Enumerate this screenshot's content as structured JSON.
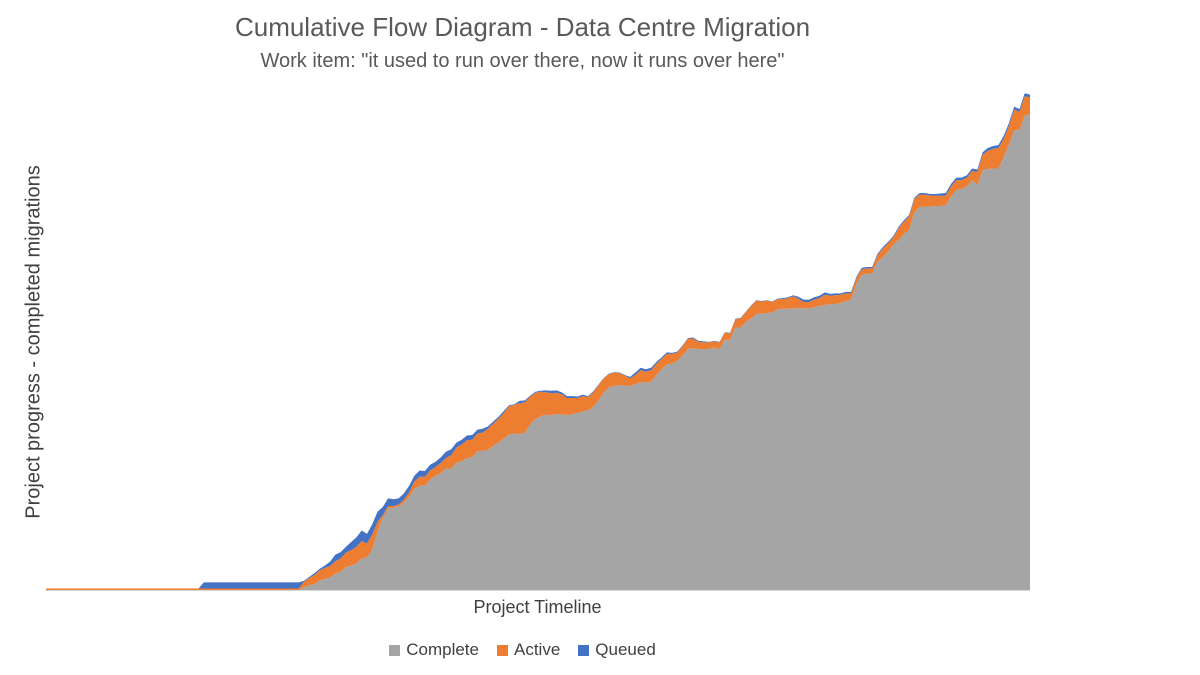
{
  "chart_data": {
    "type": "area",
    "stacked": true,
    "title": "Cumulative Flow Diagram - Data Centre Migration",
    "subtitle": "Work item: \"it used to run over there, now it runs over here\"",
    "xlabel": "Project Timeline",
    "ylabel": "Project progress - completed migrations",
    "x_ticks_shown": false,
    "y_ticks_shown": false,
    "grid": false,
    "legend_position": "bottom",
    "ylim": [
      0,
      100
    ],
    "series": [
      {
        "name": "Complete",
        "color": "#A5A5A5",
        "values": [
          0,
          0,
          0,
          0,
          0,
          0,
          0,
          0,
          0,
          0,
          0,
          0,
          0,
          0,
          0,
          0,
          0,
          0,
          0,
          0,
          0,
          0,
          0,
          0,
          0,
          0,
          0,
          0,
          0,
          0,
          0,
          0,
          0,
          0,
          0,
          0,
          0,
          0,
          0,
          0,
          0,
          0,
          0,
          0,
          0,
          0,
          0,
          0,
          0,
          0.5,
          1,
          1.2,
          2,
          2.3,
          2.6,
          3.4,
          3.8,
          4.8,
          5.1,
          5.5,
          6.6,
          6.8,
          8.5,
          12.1,
          15,
          17,
          17.2,
          17.4,
          18.2,
          19.3,
          21.1,
          21.7,
          21.8,
          23,
          23.8,
          24.3,
          25.3,
          25.3,
          26.5,
          26.8,
          27.5,
          27.7,
          28.9,
          29,
          29.2,
          30,
          30.7,
          31.5,
          32.4,
          32.6,
          32.5,
          32.8,
          34.5,
          35.6,
          36.2,
          36.5,
          36.4,
          36.7,
          36.5,
          36.5,
          36.6,
          36.9,
          37.2,
          37.4,
          38.2,
          39.5,
          41.2,
          42.3,
          42.5,
          42.7,
          42.6,
          42.5,
          42.9,
          43.3,
          43.2,
          43.4,
          44.8,
          46,
          47,
          47.2,
          47.7,
          49,
          50.2,
          50.4,
          50.2,
          50.2,
          50.2,
          50.5,
          50.2,
          52.1,
          52.1,
          54.7,
          54.7,
          55.8,
          56.6,
          57.5,
          57.6,
          57.7,
          57.8,
          58.5,
          58.6,
          58.6,
          58.7,
          58.7,
          58.7,
          58.7,
          58.9,
          59.2,
          59.4,
          59.5,
          59.6,
          59.8,
          60.2,
          60.5,
          63.7,
          65.6,
          65.9,
          65.9,
          68.4,
          69.3,
          70.5,
          71.9,
          72.9,
          74.1,
          75,
          78.6,
          79.8,
          79.9,
          79.9,
          80,
          80,
          80.1,
          82,
          83.3,
          83.6,
          84.1,
          85.4,
          84.3,
          87.5,
          87.7,
          87.8,
          87.8,
          90.2,
          92.7,
          95.8,
          95.8,
          98.8,
          99.2
        ]
      },
      {
        "name": "Active",
        "color": "#ED7D31",
        "values": [
          0.3,
          0.3,
          0.3,
          0.3,
          0.3,
          0.3,
          0.3,
          0.3,
          0.3,
          0.3,
          0.3,
          0.3,
          0.3,
          0.3,
          0.3,
          0.3,
          0.3,
          0.3,
          0.3,
          0.3,
          0.3,
          0.3,
          0.3,
          0.3,
          0.3,
          0.3,
          0.3,
          0.3,
          0.3,
          0.3,
          0.3,
          0.3,
          0.3,
          0.3,
          0.3,
          0.3,
          0.3,
          0.3,
          0.3,
          0.3,
          0.3,
          0.3,
          0.3,
          0.3,
          0.3,
          0.3,
          0.3,
          0.3,
          0.3,
          1.2,
          1.5,
          1.9,
          2.1,
          2.3,
          2.4,
          2.6,
          2.8,
          3,
          3.2,
          3.5,
          3.6,
          2.9,
          3.1,
          2.1,
          0.6,
          0.5,
          0.3,
          0.4,
          0.6,
          1,
          1.5,
          1.9,
          1.8,
          1.9,
          1.8,
          2.1,
          2.2,
          2.8,
          3.2,
          3.5,
          3.7,
          3.6,
          3.7,
          3.8,
          4.4,
          4.7,
          5,
          5.4,
          5.9,
          6,
          6.4,
          6.3,
          5.8,
          5.5,
          5.1,
          4.7,
          4.6,
          4.4,
          4.3,
          3.5,
          3.4,
          3.1,
          3.2,
          2.8,
          3,
          3.2,
          2.9,
          2.7,
          2.8,
          2.5,
          2.1,
          1.6,
          1.9,
          2.5,
          2.3,
          2.4,
          2.3,
          2.2,
          2.2,
          2,
          1.8,
          1.8,
          2.2,
          2,
          1.5,
          1.4,
          1.4,
          1.3,
          1.4,
          1.5,
          1.4,
          1.7,
          1.9,
          2.1,
          2.6,
          2.8,
          2.5,
          2.6,
          2.2,
          2.1,
          2,
          2.2,
          2.5,
          2,
          1.3,
          1.3,
          1.6,
          1.6,
          2.1,
          1.8,
          1.8,
          1.7,
          1.6,
          1.3,
          1.2,
          1.2,
          1.1,
          1.1,
          1.3,
          1.8,
          1.7,
          1.5,
          2.4,
          2.6,
          2.8,
          2.8,
          2.6,
          2.5,
          2.3,
          2.2,
          2.1,
          2.1,
          2.1,
          2.1,
          1.8,
          1.8,
          1.9,
          2.8,
          3.2,
          3.8,
          4.1,
          4.3,
          3.8,
          4,
          4.3,
          3.8,
          4.1,
          3.4,
          2.7,
          0.3,
          0.5
        ]
      },
      {
        "name": "Queued",
        "color": "#4472C4",
        "values": [
          0,
          0,
          0,
          0,
          0,
          0,
          0,
          0,
          0,
          0,
          0,
          0,
          0,
          0,
          0,
          0,
          0,
          0,
          0,
          0,
          0,
          0,
          0,
          0,
          0,
          0,
          0,
          0,
          0,
          0,
          1.3,
          1.3,
          1.3,
          1.3,
          1.3,
          1.3,
          1.3,
          1.3,
          1.3,
          1.3,
          1.3,
          1.3,
          1.3,
          1.3,
          1.3,
          1.3,
          1.3,
          1.3,
          1.3,
          0.2,
          0.2,
          0.4,
          0.3,
          0.5,
          0.9,
          1.4,
          1.3,
          1.2,
          1.7,
          2,
          2.2,
          2,
          2.1,
          2.1,
          1.7,
          1.6,
          1.4,
          1.3,
          1.3,
          1.4,
          1.2,
          1.3,
          1.2,
          1.2,
          1.1,
          1.2,
          1.3,
          1.2,
          1,
          1,
          1,
          1,
          0.8,
          0.8,
          0.5,
          0.4,
          0.4,
          0.4,
          0.2,
          0.1,
          0.5,
          0.4,
          0.2,
          0.2,
          0.2,
          0.4,
          0.5,
          0.5,
          0.4,
          0.4,
          0.4,
          0.3,
          0.3,
          0.2,
          0.2,
          0.1,
          0.1,
          0.1,
          0.1,
          0.1,
          0.1,
          0.3,
          0.5,
          0.5,
          0.5,
          0.5,
          0.4,
          0.3,
          0.3,
          0.2,
          0.2,
          0.2,
          0.1,
          0.2,
          0.2,
          0.2,
          0.1,
          0.1,
          0.1,
          0.1,
          0.1,
          0.1,
          0.1,
          0.1,
          0.1,
          0.1,
          0.1,
          0.1,
          0.1,
          0.1,
          0.2,
          0.2,
          0.2,
          0.4,
          0.5,
          0.5,
          0.5,
          0.5,
          0.5,
          0.4,
          0.4,
          0.3,
          0.3,
          0.3,
          0.3,
          0.3,
          0.3,
          0.3,
          0.3,
          0.3,
          0.3,
          0.3,
          0.3,
          0.3,
          0.3,
          0.3,
          0.3,
          0.3,
          0.3,
          0.3,
          0.5,
          0.5,
          0.5,
          0.5,
          0.5,
          0.5,
          0.5,
          0.5,
          0.5,
          0.6,
          0.6,
          0.6,
          0.6,
          0.6,
          0.6,
          0.6,
          0.6,
          0.6,
          0.5,
          0.5,
          0.3,
          0.3
        ]
      }
    ]
  }
}
